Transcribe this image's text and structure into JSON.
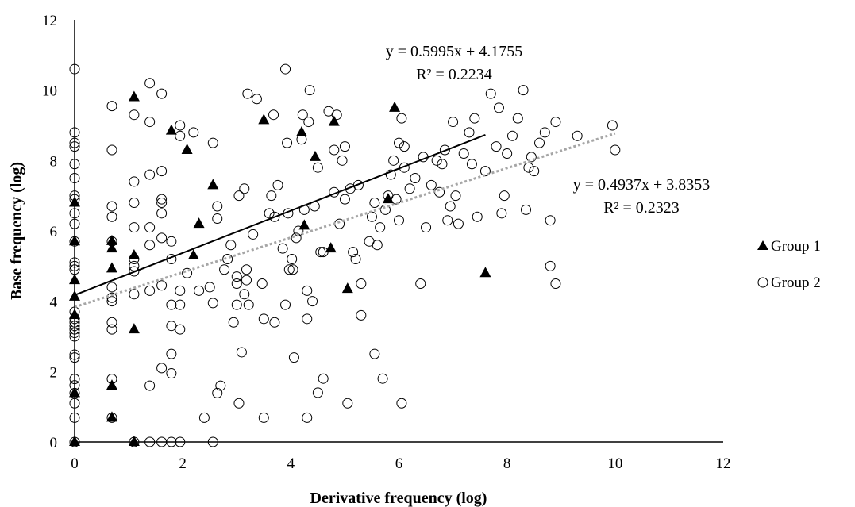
{
  "chart_data": {
    "type": "scatter",
    "xlabel": "Derivative frequency (log)",
    "ylabel": "Base frequency (log)",
    "xlim": [
      0,
      12
    ],
    "ylim": [
      0,
      12
    ],
    "xticks": [
      "0",
      "2",
      "4",
      "6",
      "8",
      "10",
      "12"
    ],
    "yticks": [
      "0",
      "2",
      "4",
      "6",
      "8",
      "10",
      "12"
    ],
    "grid": false,
    "legend_position": "right",
    "series": [
      {
        "name": "Group 1",
        "marker": "filled-triangle",
        "color": "#000000",
        "points": [
          [
            0,
            0
          ],
          [
            0,
            1.39
          ],
          [
            0,
            3.61
          ],
          [
            0,
            4.13
          ],
          [
            0,
            4.6
          ],
          [
            0,
            5.7
          ],
          [
            0,
            6.8
          ],
          [
            0.69,
            0.69
          ],
          [
            0.69,
            1.6
          ],
          [
            0.69,
            4.93
          ],
          [
            0.69,
            5.5
          ],
          [
            0.69,
            5.71
          ],
          [
            1.1,
            0
          ],
          [
            1.1,
            3.2
          ],
          [
            1.1,
            5.3
          ],
          [
            1.1,
            9.8
          ],
          [
            1.79,
            8.85
          ],
          [
            2.08,
            8.3
          ],
          [
            2.2,
            5.3
          ],
          [
            2.3,
            6.2
          ],
          [
            2.56,
            7.3
          ],
          [
            3.5,
            9.15
          ],
          [
            4.2,
            8.8
          ],
          [
            4.25,
            6.15
          ],
          [
            4.45,
            8.1
          ],
          [
            4.74,
            5.5
          ],
          [
            4.8,
            9.1
          ],
          [
            5.05,
            4.35
          ],
          [
            5.8,
            6.9
          ],
          [
            5.92,
            9.5
          ],
          [
            7.6,
            4.8
          ]
        ],
        "trendline": {
          "slope": 0.5995,
          "intercept": 4.1755,
          "x_range": [
            0,
            7.6
          ],
          "style": "solid",
          "color": "#000000"
        },
        "equation": "y = 0.5995x + 4.1755",
        "r_squared": "R² = 0.2234"
      },
      {
        "name": "Group 2",
        "marker": "open-circle",
        "color": "#000000",
        "points": [
          [
            0,
            0
          ],
          [
            0,
            0.69
          ],
          [
            0,
            1.1
          ],
          [
            0,
            1.39
          ],
          [
            0,
            1.61
          ],
          [
            0,
            1.79
          ],
          [
            0,
            2.4
          ],
          [
            0,
            2.48
          ],
          [
            0,
            3.0
          ],
          [
            0,
            3.1
          ],
          [
            0,
            3.2
          ],
          [
            0,
            3.3
          ],
          [
            0,
            3.4
          ],
          [
            0,
            3.5
          ],
          [
            0,
            3.7
          ],
          [
            0,
            4.9
          ],
          [
            0,
            5.0
          ],
          [
            0,
            5.1
          ],
          [
            0,
            5.7
          ],
          [
            0,
            6.2
          ],
          [
            0,
            6.5
          ],
          [
            0,
            6.9
          ],
          [
            0,
            7.0
          ],
          [
            0,
            7.5
          ],
          [
            0,
            7.9
          ],
          [
            0,
            8.4
          ],
          [
            0,
            8.5
          ],
          [
            0,
            8.8
          ],
          [
            0,
            10.6
          ],
          [
            0.69,
            0.69
          ],
          [
            0.69,
            1.79
          ],
          [
            0.69,
            3.2
          ],
          [
            0.69,
            3.4
          ],
          [
            0.69,
            4.0
          ],
          [
            0.69,
            4.1
          ],
          [
            0.69,
            4.4
          ],
          [
            0.69,
            5.7
          ],
          [
            0.69,
            6.4
          ],
          [
            0.69,
            6.7
          ],
          [
            0.69,
            8.3
          ],
          [
            0.69,
            9.55
          ],
          [
            1.1,
            0
          ],
          [
            1.1,
            4.2
          ],
          [
            1.1,
            4.85
          ],
          [
            1.1,
            5.0
          ],
          [
            1.1,
            5.2
          ],
          [
            1.1,
            6.1
          ],
          [
            1.1,
            6.8
          ],
          [
            1.1,
            7.4
          ],
          [
            1.1,
            9.3
          ],
          [
            1.39,
            0
          ],
          [
            1.39,
            1.6
          ],
          [
            1.39,
            4.3
          ],
          [
            1.39,
            5.6
          ],
          [
            1.39,
            6.1
          ],
          [
            1.39,
            7.6
          ],
          [
            1.39,
            9.1
          ],
          [
            1.39,
            10.2
          ],
          [
            1.61,
            0
          ],
          [
            1.61,
            2.1
          ],
          [
            1.61,
            4.45
          ],
          [
            1.61,
            5.8
          ],
          [
            1.61,
            6.5
          ],
          [
            1.61,
            6.8
          ],
          [
            1.61,
            6.9
          ],
          [
            1.61,
            7.7
          ],
          [
            1.61,
            9.9
          ],
          [
            1.79,
            0
          ],
          [
            1.79,
            1.95
          ],
          [
            1.79,
            2.5
          ],
          [
            1.79,
            3.3
          ],
          [
            1.79,
            3.9
          ],
          [
            1.79,
            5.2
          ],
          [
            1.79,
            5.7
          ],
          [
            1.95,
            0
          ],
          [
            1.95,
            3.2
          ],
          [
            1.95,
            3.9
          ],
          [
            1.95,
            4.3
          ],
          [
            1.95,
            8.7
          ],
          [
            1.95,
            9.0
          ],
          [
            2.08,
            4.8
          ],
          [
            2.2,
            8.8
          ],
          [
            2.3,
            4.3
          ],
          [
            2.4,
            0.69
          ],
          [
            2.5,
            4.4
          ],
          [
            2.56,
            0
          ],
          [
            2.56,
            3.95
          ],
          [
            2.56,
            8.5
          ],
          [
            2.64,
            1.39
          ],
          [
            2.64,
            6.35
          ],
          [
            2.64,
            6.7
          ],
          [
            2.7,
            1.6
          ],
          [
            2.77,
            4.9
          ],
          [
            2.83,
            5.2
          ],
          [
            2.89,
            5.6
          ],
          [
            2.94,
            3.4
          ],
          [
            3.0,
            3.9
          ],
          [
            3.0,
            4.5
          ],
          [
            3.0,
            4.7
          ],
          [
            3.04,
            1.1
          ],
          [
            3.04,
            7.0
          ],
          [
            3.09,
            2.55
          ],
          [
            3.14,
            4.2
          ],
          [
            3.14,
            7.2
          ],
          [
            3.18,
            4.6
          ],
          [
            3.18,
            4.9
          ],
          [
            3.2,
            9.9
          ],
          [
            3.22,
            3.9
          ],
          [
            3.3,
            5.9
          ],
          [
            3.37,
            9.75
          ],
          [
            3.47,
            4.5
          ],
          [
            3.5,
            0.69
          ],
          [
            3.5,
            3.5
          ],
          [
            3.6,
            6.5
          ],
          [
            3.64,
            7.0
          ],
          [
            3.68,
            9.3
          ],
          [
            3.7,
            3.4
          ],
          [
            3.7,
            6.4
          ],
          [
            3.76,
            7.3
          ],
          [
            3.85,
            5.5
          ],
          [
            3.9,
            3.9
          ],
          [
            3.9,
            10.6
          ],
          [
            3.93,
            8.5
          ],
          [
            3.95,
            6.5
          ],
          [
            3.97,
            4.9
          ],
          [
            4.02,
            5.2
          ],
          [
            4.04,
            4.9
          ],
          [
            4.06,
            2.4
          ],
          [
            4.1,
            5.8
          ],
          [
            4.14,
            6.0
          ],
          [
            4.2,
            8.6
          ],
          [
            4.22,
            9.3
          ],
          [
            4.25,
            6.6
          ],
          [
            4.3,
            3.5
          ],
          [
            4.3,
            4.3
          ],
          [
            4.3,
            0.69
          ],
          [
            4.33,
            9.1
          ],
          [
            4.35,
            10.0
          ],
          [
            4.4,
            4.0
          ],
          [
            4.44,
            6.7
          ],
          [
            4.5,
            1.4
          ],
          [
            4.5,
            7.8
          ],
          [
            4.55,
            5.4
          ],
          [
            4.6,
            1.8
          ],
          [
            4.6,
            5.4
          ],
          [
            4.7,
            9.4
          ],
          [
            4.8,
            7.1
          ],
          [
            4.8,
            8.3
          ],
          [
            4.85,
            9.3
          ],
          [
            4.9,
            6.2
          ],
          [
            4.95,
            8.0
          ],
          [
            5.0,
            6.9
          ],
          [
            5.0,
            8.4
          ],
          [
            5.05,
            1.1
          ],
          [
            5.1,
            7.2
          ],
          [
            5.15,
            5.4
          ],
          [
            5.2,
            5.2
          ],
          [
            5.25,
            7.3
          ],
          [
            5.3,
            3.6
          ],
          [
            5.3,
            4.5
          ],
          [
            5.45,
            5.7
          ],
          [
            5.5,
            6.4
          ],
          [
            5.55,
            2.5
          ],
          [
            5.55,
            6.8
          ],
          [
            5.6,
            5.6
          ],
          [
            5.65,
            6.1
          ],
          [
            5.7,
            1.8
          ],
          [
            5.75,
            6.6
          ],
          [
            5.8,
            7.0
          ],
          [
            5.85,
            7.6
          ],
          [
            5.9,
            8.0
          ],
          [
            5.95,
            6.9
          ],
          [
            6.0,
            8.5
          ],
          [
            6.0,
            6.3
          ],
          [
            6.05,
            1.1
          ],
          [
            6.05,
            9.2
          ],
          [
            6.1,
            8.4
          ],
          [
            6.1,
            7.8
          ],
          [
            6.2,
            7.2
          ],
          [
            6.3,
            7.5
          ],
          [
            6.4,
            4.5
          ],
          [
            6.45,
            8.1
          ],
          [
            6.5,
            6.1
          ],
          [
            6.6,
            7.3
          ],
          [
            6.7,
            8.0
          ],
          [
            6.75,
            7.1
          ],
          [
            6.8,
            7.9
          ],
          [
            6.85,
            8.3
          ],
          [
            6.9,
            6.3
          ],
          [
            6.95,
            6.7
          ],
          [
            7.0,
            9.1
          ],
          [
            7.05,
            7.0
          ],
          [
            7.1,
            6.2
          ],
          [
            7.2,
            8.2
          ],
          [
            7.3,
            8.8
          ],
          [
            7.35,
            7.9
          ],
          [
            7.4,
            9.2
          ],
          [
            7.45,
            6.4
          ],
          [
            7.6,
            7.7
          ],
          [
            7.7,
            9.9
          ],
          [
            7.8,
            8.4
          ],
          [
            7.85,
            9.5
          ],
          [
            7.9,
            6.5
          ],
          [
            7.95,
            7.0
          ],
          [
            8.0,
            8.2
          ],
          [
            8.1,
            8.7
          ],
          [
            8.2,
            9.2
          ],
          [
            8.3,
            10.0
          ],
          [
            8.35,
            6.6
          ],
          [
            8.4,
            7.8
          ],
          [
            8.45,
            8.1
          ],
          [
            8.5,
            7.7
          ],
          [
            8.6,
            8.5
          ],
          [
            8.7,
            8.8
          ],
          [
            8.8,
            6.3
          ],
          [
            8.8,
            5.0
          ],
          [
            8.9,
            9.1
          ],
          [
            8.9,
            4.5
          ],
          [
            9.3,
            8.7
          ],
          [
            9.95,
            9.0
          ],
          [
            10.0,
            8.3
          ]
        ],
        "trendline": {
          "slope": 0.4937,
          "intercept": 3.8353,
          "x_range": [
            0,
            10
          ],
          "style": "dotted",
          "color": "#a6a6a6"
        },
        "equation": "y = 0.4937x + 3.8353",
        "r_squared": "R² = 0.2323"
      }
    ]
  }
}
